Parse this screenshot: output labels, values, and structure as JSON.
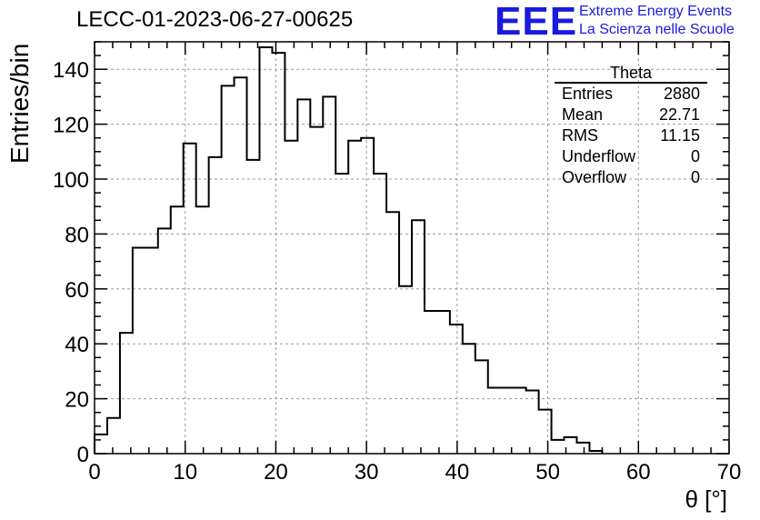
{
  "title": "LECC-01-2023-06-27-00625",
  "logo": {
    "mark": "EEE",
    "line1": "Extreme Energy Events",
    "line2": "La Scienza nelle Scuole",
    "color": "#1a1adf"
  },
  "stats_box": {
    "name": "Theta",
    "rows": [
      {
        "label": "Entries",
        "value": "2880"
      },
      {
        "label": "Mean",
        "value": "22.71"
      },
      {
        "label": "RMS",
        "value": "11.15"
      },
      {
        "label": "Underflow",
        "value": "0"
      },
      {
        "label": "Overflow",
        "value": "0"
      }
    ]
  },
  "chart_data": {
    "type": "bar",
    "title": "LECC-01-2023-06-27-00625",
    "xlabel": "θ [°]",
    "ylabel": "Entries/bin",
    "xlim": [
      0,
      70
    ],
    "ylim": [
      0,
      150
    ],
    "grid": true,
    "bin_width": 1.4,
    "x_ticks": [
      0,
      10,
      20,
      30,
      40,
      50,
      60,
      70
    ],
    "y_ticks": [
      0,
      20,
      40,
      60,
      80,
      100,
      120,
      140
    ],
    "values": [
      7,
      13,
      44,
      75,
      75,
      82,
      90,
      113,
      90,
      108,
      134,
      137,
      107,
      148,
      146,
      114,
      129,
      119,
      130,
      102,
      114,
      115,
      102,
      88,
      61,
      85,
      52,
      52,
      47,
      40,
      34,
      24,
      24,
      24,
      23,
      16,
      5,
      6,
      4,
      1
    ]
  }
}
